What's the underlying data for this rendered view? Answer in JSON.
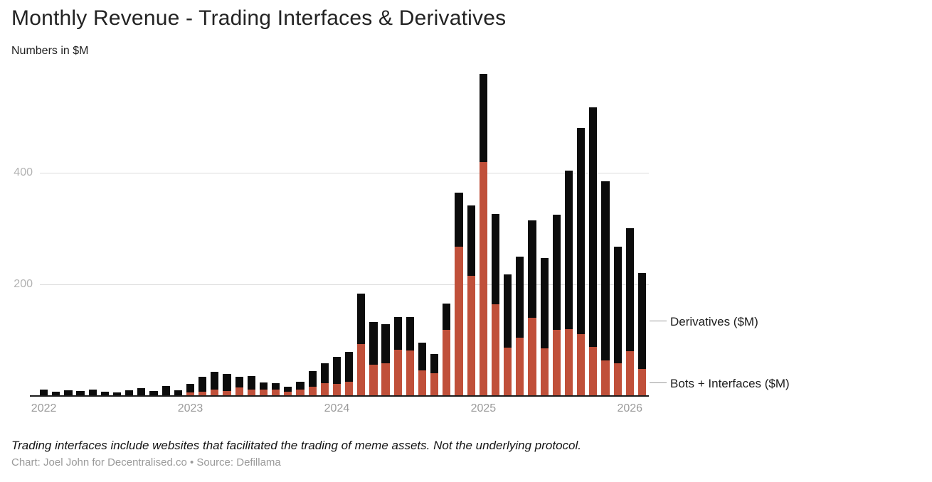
{
  "header": {
    "title": "Monthly Revenue - Trading Interfaces & Derivatives",
    "subtitle": "Numbers in $M"
  },
  "legend": {
    "derivatives_label": "Derivatives ($M)",
    "bots_label": "Bots + Interfaces ($M)"
  },
  "footer": {
    "note": "Trading interfaces include websites that facilitated the trading of meme assets. Not the underlying protocol.",
    "credit": "Chart: Joel John for Decentralised.co • Source: Defillama"
  },
  "chart_data": {
    "type": "bar",
    "stacked": true,
    "title": "Monthly Revenue - Trading Interfaces & Derivatives",
    "subtitle": "Numbers in $M",
    "unit": "$M",
    "grid": "horizontal",
    "legend_position": "right",
    "ylim": [
      0,
      582
    ],
    "yticks": [
      200,
      400
    ],
    "x": [
      "Jan 2022",
      "Feb 2022",
      "Mar 2022",
      "Apr 2022",
      "May 2022",
      "Jun 2022",
      "Jul 2022",
      "Aug 2022",
      "Sep 2022",
      "Oct 2022",
      "Nov 2022",
      "Dec 2022",
      "Jan 2023",
      "Feb 2023",
      "Mar 2023",
      "Apr 2023",
      "May 2023",
      "Jun 2023",
      "Jul 2023",
      "Aug 2023",
      "Sep 2023",
      "Oct 2023",
      "Nov 2023",
      "Dec 2023",
      "Jan 2024",
      "Feb 2024",
      "Mar 2024",
      "Apr 2024",
      "May 2024",
      "Jun 2024",
      "Jul 2024",
      "Aug 2024",
      "Sep 2024",
      "Oct 2024",
      "Nov 2024",
      "Dec 2024",
      "Jan 2025",
      "Feb 2025",
      "Mar 2025",
      "Apr 2025",
      "May 2025",
      "Jun 2025",
      "Jul 2025",
      "Aug 2025",
      "Sep 2025",
      "Oct 2025",
      "Nov 2025",
      "Dec 2025",
      "Jan 2026",
      "Feb 2026"
    ],
    "year_ticks": [
      {
        "label": "2022",
        "month_index": 0
      },
      {
        "label": "2023",
        "month_index": 12
      },
      {
        "label": "2024",
        "month_index": 24
      },
      {
        "label": "2025",
        "month_index": 36
      },
      {
        "label": "2026",
        "month_index": 48
      }
    ],
    "series": [
      {
        "name": "Bots + Interfaces ($M)",
        "color": "#c0503a",
        "values": [
          0,
          0,
          0,
          0,
          0,
          0,
          0,
          0,
          0,
          0,
          0,
          0,
          6,
          8,
          11,
          9,
          15,
          12,
          11,
          12,
          8,
          12,
          16,
          23,
          22,
          26,
          93,
          56,
          59,
          83,
          82,
          46,
          41,
          119,
          268,
          215,
          419,
          164,
          87,
          104,
          140,
          85,
          119,
          120,
          111,
          88,
          64,
          58,
          80,
          48
        ]
      },
      {
        "name": "Derivatives ($M)",
        "color": "#0c0c0c",
        "values": [
          11,
          8,
          10,
          9,
          11,
          8,
          6,
          10,
          14,
          9,
          18,
          10,
          16,
          26,
          32,
          30,
          19,
          24,
          13,
          11,
          8,
          13,
          29,
          36,
          48,
          53,
          90,
          77,
          70,
          58,
          60,
          50,
          34,
          46,
          96,
          126,
          158,
          162,
          131,
          146,
          175,
          162,
          206,
          284,
          369,
          429,
          321,
          209,
          221,
          173
        ]
      }
    ]
  }
}
